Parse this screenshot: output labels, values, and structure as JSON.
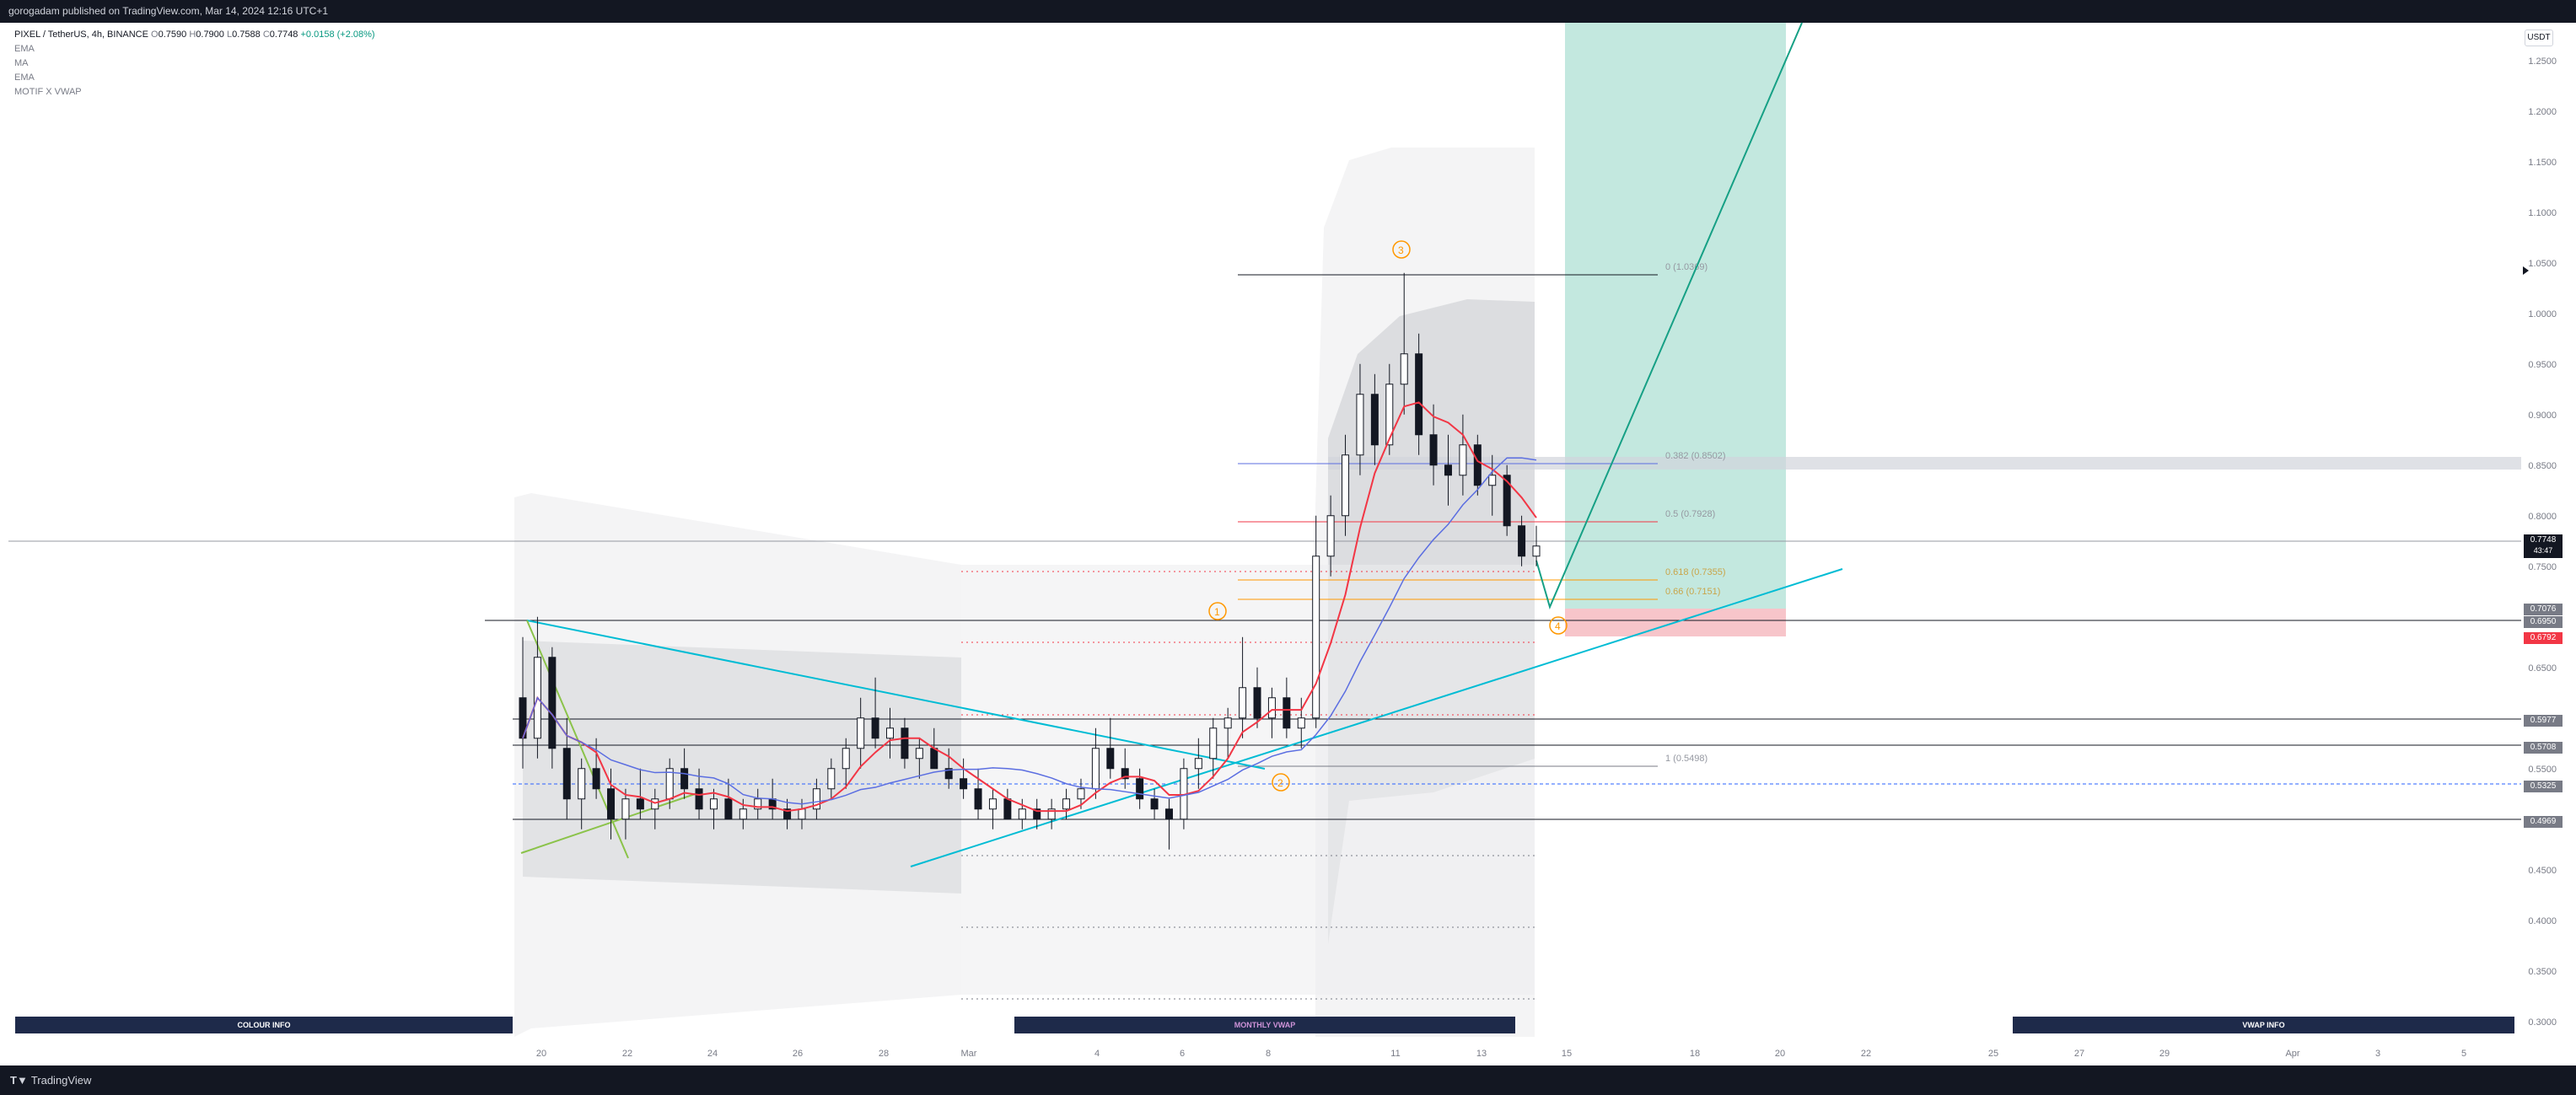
{
  "header": {
    "publisher": "gorogadam published on TradingView.com, Mar 14, 2024 12:16 UTC+1"
  },
  "legend": {
    "symbol": "PIXEL / TetherUS, 4h, BINANCE",
    "open_label": "O",
    "open": "0.7590",
    "high_label": "H",
    "high": "0.7900",
    "low_label": "L",
    "low": "0.7588",
    "close_label": "C",
    "close": "0.7748",
    "change": "+0.0158 (+2.08%)",
    "indicators": [
      "EMA",
      "MA",
      "EMA",
      "MOTIF X VWAP"
    ]
  },
  "footer": {
    "brand": "TradingView"
  },
  "panels": {
    "colour_info": "COLOUR INFO",
    "monthly_vwap": "MONTHLY VWAP",
    "vwap_info": "VWAP INFO"
  },
  "axis": {
    "currency": "USDT"
  },
  "last_price": {
    "value": "0.7748",
    "countdown": "43:47"
  },
  "colors": {
    "up": "#089981",
    "down": "#f23645",
    "ema_red": "#f23645",
    "ma_blue": "#5b6ee1",
    "trend_cyan": "#00bcd4",
    "target_green": "#16a085"
  },
  "price_tags": [
    {
      "label": "0.7076",
      "color": "#787b86"
    },
    {
      "label": "0.6950",
      "color": "#787b86"
    },
    {
      "label": "0.6792",
      "color": "#f23645"
    },
    {
      "label": "0.5977",
      "color": "#787b86"
    },
    {
      "label": "0.5708",
      "color": "#787b86"
    },
    {
      "label": "0.5325",
      "color": "#787b86"
    },
    {
      "label": "0.4969",
      "color": "#787b86"
    }
  ],
  "wave_labels": [
    "1",
    "2",
    "3",
    "4"
  ],
  "fib_labels": [
    "0 (1.0369)",
    "0.382 (0.8502)",
    "0.5 (0.7928)",
    "0.618 (0.7355)",
    "0.66 (0.7151)",
    "1 (0.5498)"
  ],
  "chart_data": {
    "type": "candlestick",
    "y_ticks": [
      "1.2500",
      "1.2000",
      "1.1500",
      "1.1000",
      "1.0500",
      "1.0000",
      "0.9500",
      "0.9000",
      "0.8500",
      "0.8000",
      "0.7500",
      "0.6500",
      "0.6000",
      "0.5500",
      "0.4500",
      "0.4000",
      "0.3500",
      "0.3000"
    ],
    "x_ticks": [
      "20",
      "22",
      "24",
      "26",
      "28",
      "Mar",
      "4",
      "6",
      "8",
      "11",
      "13",
      "15",
      "18",
      "20",
      "22",
      "25",
      "27",
      "29",
      "Apr",
      "3",
      "5"
    ],
    "ohlc_close_last": 0.7748,
    "candles": [
      [
        0.62,
        0.68,
        0.55,
        0.58
      ],
      [
        0.58,
        0.7,
        0.56,
        0.66
      ],
      [
        0.66,
        0.67,
        0.55,
        0.57
      ],
      [
        0.57,
        0.6,
        0.5,
        0.52
      ],
      [
        0.52,
        0.56,
        0.49,
        0.55
      ],
      [
        0.55,
        0.58,
        0.52,
        0.53
      ],
      [
        0.53,
        0.55,
        0.48,
        0.5
      ],
      [
        0.5,
        0.53,
        0.48,
        0.52
      ],
      [
        0.52,
        0.55,
        0.5,
        0.51
      ],
      [
        0.51,
        0.53,
        0.49,
        0.52
      ],
      [
        0.52,
        0.56,
        0.51,
        0.55
      ],
      [
        0.55,
        0.57,
        0.52,
        0.53
      ],
      [
        0.53,
        0.55,
        0.5,
        0.51
      ],
      [
        0.51,
        0.53,
        0.49,
        0.52
      ],
      [
        0.52,
        0.54,
        0.5,
        0.5
      ],
      [
        0.5,
        0.52,
        0.49,
        0.51
      ],
      [
        0.51,
        0.53,
        0.5,
        0.52
      ],
      [
        0.52,
        0.54,
        0.5,
        0.51
      ],
      [
        0.51,
        0.52,
        0.49,
        0.5
      ],
      [
        0.5,
        0.52,
        0.49,
        0.51
      ],
      [
        0.51,
        0.54,
        0.5,
        0.53
      ],
      [
        0.53,
        0.56,
        0.52,
        0.55
      ],
      [
        0.55,
        0.58,
        0.53,
        0.57
      ],
      [
        0.57,
        0.62,
        0.55,
        0.6
      ],
      [
        0.6,
        0.64,
        0.57,
        0.58
      ],
      [
        0.58,
        0.61,
        0.56,
        0.59
      ],
      [
        0.59,
        0.6,
        0.55,
        0.56
      ],
      [
        0.56,
        0.58,
        0.54,
        0.57
      ],
      [
        0.57,
        0.59,
        0.55,
        0.55
      ],
      [
        0.55,
        0.57,
        0.53,
        0.54
      ],
      [
        0.54,
        0.56,
        0.52,
        0.53
      ],
      [
        0.53,
        0.55,
        0.5,
        0.51
      ],
      [
        0.51,
        0.53,
        0.49,
        0.52
      ],
      [
        0.52,
        0.53,
        0.5,
        0.5
      ],
      [
        0.5,
        0.52,
        0.49,
        0.51
      ],
      [
        0.51,
        0.52,
        0.49,
        0.5
      ],
      [
        0.5,
        0.52,
        0.49,
        0.51
      ],
      [
        0.51,
        0.53,
        0.5,
        0.52
      ],
      [
        0.52,
        0.54,
        0.51,
        0.53
      ],
      [
        0.53,
        0.59,
        0.52,
        0.57
      ],
      [
        0.57,
        0.6,
        0.54,
        0.55
      ],
      [
        0.55,
        0.57,
        0.53,
        0.54
      ],
      [
        0.54,
        0.55,
        0.51,
        0.52
      ],
      [
        0.52,
        0.53,
        0.5,
        0.51
      ],
      [
        0.51,
        0.52,
        0.47,
        0.5
      ],
      [
        0.5,
        0.56,
        0.49,
        0.55
      ],
      [
        0.55,
        0.58,
        0.53,
        0.56
      ],
      [
        0.56,
        0.6,
        0.54,
        0.59
      ],
      [
        0.59,
        0.61,
        0.56,
        0.6
      ],
      [
        0.6,
        0.68,
        0.58,
        0.63
      ],
      [
        0.63,
        0.65,
        0.59,
        0.6
      ],
      [
        0.6,
        0.63,
        0.58,
        0.62
      ],
      [
        0.62,
        0.64,
        0.58,
        0.59
      ],
      [
        0.59,
        0.62,
        0.57,
        0.6
      ],
      [
        0.6,
        0.8,
        0.59,
        0.76
      ],
      [
        0.76,
        0.82,
        0.74,
        0.8
      ],
      [
        0.8,
        0.88,
        0.78,
        0.86
      ],
      [
        0.86,
        0.95,
        0.84,
        0.92
      ],
      [
        0.92,
        0.94,
        0.85,
        0.87
      ],
      [
        0.87,
        0.95,
        0.86,
        0.93
      ],
      [
        0.93,
        1.04,
        0.9,
        0.96
      ],
      [
        0.96,
        0.98,
        0.86,
        0.88
      ],
      [
        0.88,
        0.91,
        0.83,
        0.85
      ],
      [
        0.85,
        0.88,
        0.81,
        0.84
      ],
      [
        0.84,
        0.9,
        0.82,
        0.87
      ],
      [
        0.87,
        0.88,
        0.82,
        0.83
      ],
      [
        0.83,
        0.86,
        0.8,
        0.84
      ],
      [
        0.84,
        0.85,
        0.78,
        0.79
      ],
      [
        0.79,
        0.8,
        0.75,
        0.76
      ],
      [
        0.76,
        0.79,
        0.75,
        0.77
      ]
    ]
  }
}
